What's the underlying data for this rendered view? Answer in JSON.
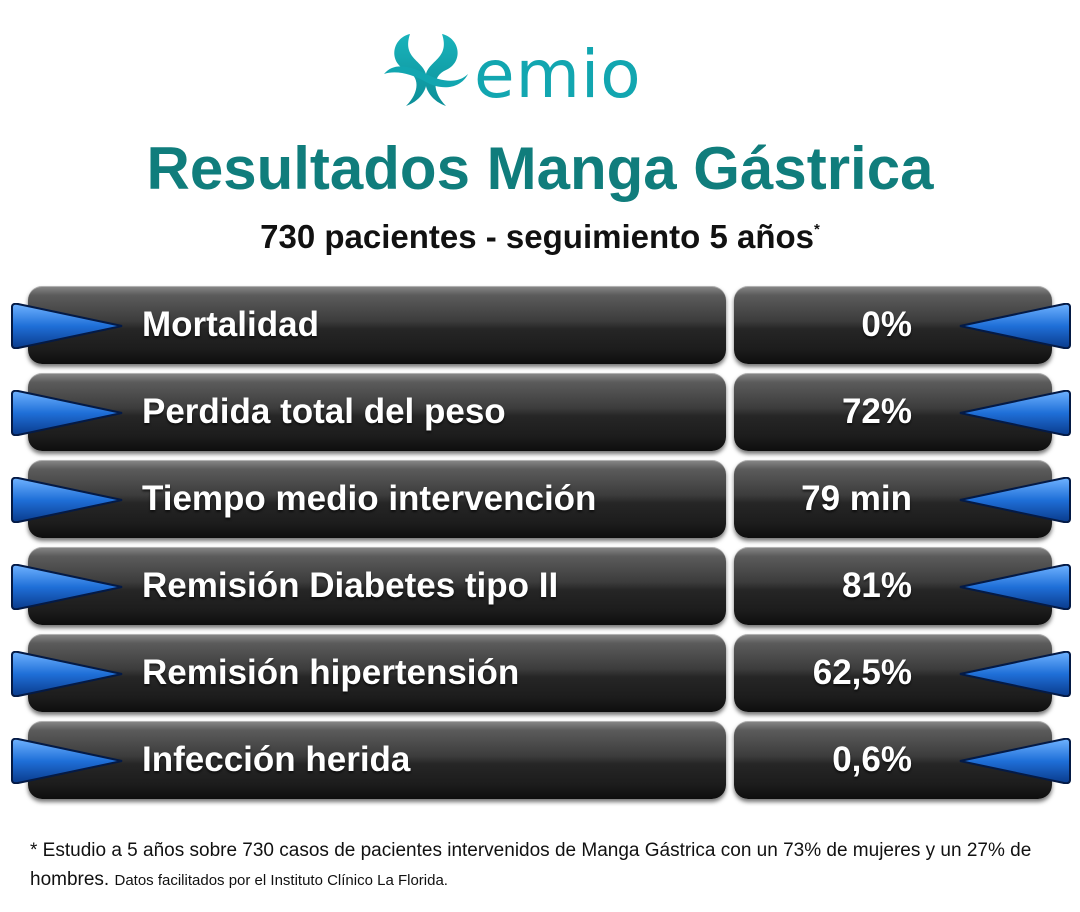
{
  "brand": {
    "logo_text": "emio",
    "logo_color": "#12a6b0"
  },
  "title": "Resultados Manga Gástrica",
  "subtitle": {
    "text": "730 pacientes - seguimiento 5 años",
    "marker": "*"
  },
  "rows": [
    {
      "label": "Mortalidad",
      "value": "0%"
    },
    {
      "label": "Perdida total del peso",
      "value": "72%"
    },
    {
      "label": "Tiempo medio intervención",
      "value": "79 min"
    },
    {
      "label": "Remisión Diabetes tipo II",
      "value": "81%"
    },
    {
      "label": "Remisión hipertensión",
      "value": "62,5%"
    },
    {
      "label": "Infección herida",
      "value": "0,6%"
    }
  ],
  "footnote": {
    "main": "* Estudio a 5 años sobre 730 casos de pacientes intervenidos de Manga Gástrica con un 73% de mujeres y un 27% de hombres.",
    "source": "Datos facilitados por el Instituto Clínico La Florida."
  },
  "colors": {
    "title": "#107d7c",
    "arrow": "#1f6fd8",
    "pill_dark": "#1c1c1c"
  }
}
